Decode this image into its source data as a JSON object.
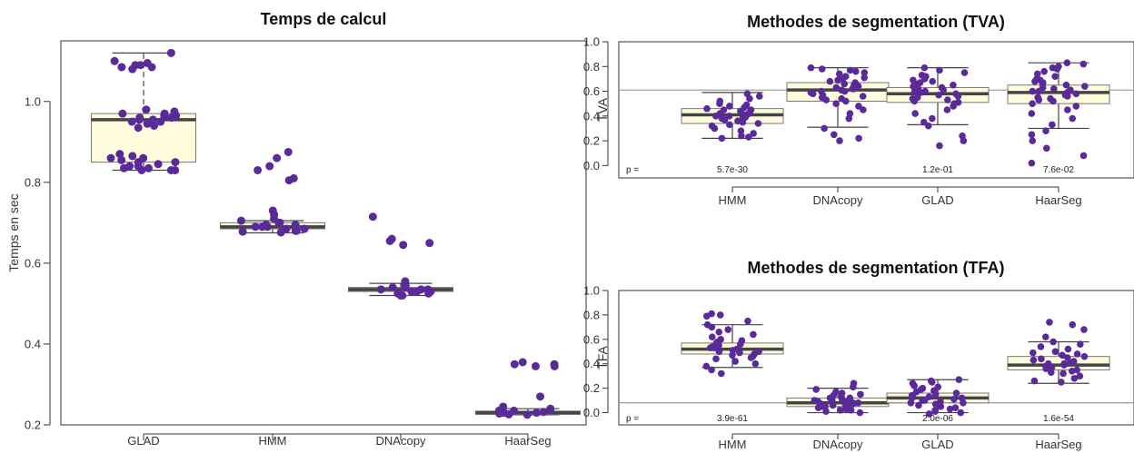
{
  "colors": {
    "point": "#5b2a9a",
    "box_fill": "#fefcdc",
    "box_edge": "#777777",
    "median": "#444444",
    "reference_line": "#999999",
    "axis": "#333333"
  },
  "chart_data": [
    {
      "type": "box",
      "title": "Temps de calcul",
      "xlabel": "",
      "ylabel": "Temps en sec",
      "ylim": [
        0.2,
        1.15
      ],
      "yticks": [
        0.2,
        0.4,
        0.6,
        0.8,
        1.0
      ],
      "ytick_labels": [
        "0.2",
        "0.4",
        "0.6",
        "0.8",
        "1.0"
      ],
      "categories": [
        "GLAD",
        "HMM",
        "DNAcopy",
        "HaarSeg"
      ],
      "boxes": [
        {
          "category": "GLAD",
          "whisker_low": 0.83,
          "q1": 0.85,
          "median": 0.955,
          "q3": 0.97,
          "whisker_high": 1.12,
          "dashed_whisker": true
        },
        {
          "category": "HMM",
          "whisker_low": 0.675,
          "q1": 0.685,
          "median": 0.69,
          "q3": 0.7,
          "whisker_high": 0.705
        },
        {
          "category": "DNAcopy",
          "whisker_low": 0.52,
          "q1": 0.53,
          "median": 0.535,
          "q3": 0.54,
          "whisker_high": 0.55
        },
        {
          "category": "HaarSeg",
          "whisker_low": 0.225,
          "q1": 0.226,
          "median": 0.23,
          "q3": 0.234,
          "whisker_high": 0.24
        }
      ],
      "points": [
        {
          "category": "GLAD",
          "values": [
            1.12,
            1.1,
            1.095,
            1.09,
            1.09,
            1.085,
            1.085,
            1.08,
            0.98,
            0.975,
            0.97,
            0.97,
            0.965,
            0.965,
            0.96,
            0.96,
            0.955,
            0.955,
            0.95,
            0.95,
            0.945,
            0.94,
            0.935,
            0.87,
            0.865,
            0.86,
            0.86,
            0.855,
            0.85,
            0.85,
            0.845,
            0.84,
            0.84,
            0.835,
            0.835,
            0.83,
            0.83,
            0.83
          ]
        },
        {
          "category": "HMM",
          "values": [
            0.875,
            0.86,
            0.84,
            0.83,
            0.81,
            0.805,
            0.73,
            0.72,
            0.71,
            0.705,
            0.7,
            0.7,
            0.695,
            0.695,
            0.69,
            0.69,
            0.69,
            0.685,
            0.685,
            0.68,
            0.68,
            0.678,
            0.676
          ]
        },
        {
          "category": "DNAcopy",
          "values": [
            0.715,
            0.66,
            0.655,
            0.65,
            0.645,
            0.555,
            0.55,
            0.545,
            0.54,
            0.54,
            0.535,
            0.535,
            0.535,
            0.53,
            0.53,
            0.53,
            0.525,
            0.525,
            0.52,
            0.52
          ]
        },
        {
          "category": "HaarSeg",
          "values": [
            0.355,
            0.35,
            0.35,
            0.345,
            0.345,
            0.27,
            0.245,
            0.24,
            0.235,
            0.235,
            0.232,
            0.23,
            0.23,
            0.228,
            0.226,
            0.225
          ]
        }
      ]
    },
    {
      "type": "box",
      "title": "Methodes de segmentation (TVA)",
      "xlabel": "",
      "ylabel": "TVA",
      "ylim": [
        -0.1,
        1.0
      ],
      "yticks": [
        0.0,
        0.2,
        0.4,
        0.6,
        0.8,
        1.0
      ],
      "ytick_labels": [
        "0.0",
        "0.2",
        "0.4",
        "0.6",
        "0.8",
        "1.0"
      ],
      "reference_line": 0.61,
      "categories": [
        "HMM",
        "DNAcopy",
        "GLAD",
        "HaarSeg"
      ],
      "pvalue_prefix": "p =",
      "pvalues": [
        "5.7e-30",
        "",
        "1.2e-01",
        "7.6e-02"
      ],
      "boxes": [
        {
          "category": "HMM",
          "whisker_low": 0.22,
          "q1": 0.34,
          "median": 0.41,
          "q3": 0.46,
          "whisker_high": 0.59
        },
        {
          "category": "DNAcopy",
          "whisker_low": 0.31,
          "q1": 0.52,
          "median": 0.61,
          "q3": 0.67,
          "whisker_high": 0.79
        },
        {
          "category": "GLAD",
          "whisker_low": 0.33,
          "q1": 0.51,
          "median": 0.58,
          "q3": 0.63,
          "whisker_high": 0.79
        },
        {
          "category": "HaarSeg",
          "whisker_low": 0.3,
          "q1": 0.5,
          "median": 0.59,
          "q3": 0.65,
          "whisker_high": 0.83
        }
      ],
      "points": [
        {
          "category": "HMM",
          "values": [
            0.58,
            0.56,
            0.54,
            0.52,
            0.5,
            0.49,
            0.48,
            0.47,
            0.46,
            0.45,
            0.45,
            0.44,
            0.43,
            0.42,
            0.42,
            0.41,
            0.41,
            0.4,
            0.4,
            0.39,
            0.38,
            0.38,
            0.37,
            0.36,
            0.35,
            0.34,
            0.33,
            0.32,
            0.3,
            0.28,
            0.26,
            0.24,
            0.23,
            0.22
          ]
        },
        {
          "category": "DNAcopy",
          "values": [
            0.79,
            0.78,
            0.77,
            0.76,
            0.75,
            0.74,
            0.72,
            0.71,
            0.7,
            0.69,
            0.68,
            0.67,
            0.66,
            0.65,
            0.64,
            0.63,
            0.62,
            0.62,
            0.61,
            0.6,
            0.6,
            0.59,
            0.58,
            0.57,
            0.56,
            0.55,
            0.54,
            0.53,
            0.52,
            0.5,
            0.48,
            0.45,
            0.42,
            0.38,
            0.3,
            0.25,
            0.22,
            0.2
          ]
        },
        {
          "category": "GLAD",
          "values": [
            0.79,
            0.77,
            0.75,
            0.73,
            0.72,
            0.7,
            0.69,
            0.68,
            0.67,
            0.66,
            0.65,
            0.64,
            0.63,
            0.62,
            0.61,
            0.6,
            0.6,
            0.59,
            0.58,
            0.57,
            0.56,
            0.55,
            0.54,
            0.53,
            0.52,
            0.51,
            0.5,
            0.48,
            0.45,
            0.42,
            0.38,
            0.35,
            0.32,
            0.24,
            0.2,
            0.16
          ]
        },
        {
          "category": "HaarSeg",
          "values": [
            0.83,
            0.82,
            0.8,
            0.79,
            0.78,
            0.76,
            0.74,
            0.72,
            0.7,
            0.69,
            0.68,
            0.67,
            0.66,
            0.65,
            0.64,
            0.63,
            0.62,
            0.61,
            0.6,
            0.6,
            0.59,
            0.58,
            0.57,
            0.56,
            0.55,
            0.54,
            0.53,
            0.52,
            0.5,
            0.48,
            0.45,
            0.42,
            0.38,
            0.33,
            0.28,
            0.25,
            0.2,
            0.14,
            0.08,
            0.02
          ]
        }
      ]
    },
    {
      "type": "box",
      "title": "Methodes de segmentation (TFA)",
      "xlabel": "",
      "ylabel": "TFA",
      "ylim": [
        -0.1,
        1.0
      ],
      "yticks": [
        0.0,
        0.2,
        0.4,
        0.6,
        0.8,
        1.0
      ],
      "ytick_labels": [
        "0.0",
        "0.2",
        "0.4",
        "0.6",
        "0.8",
        "1.0"
      ],
      "reference_line": 0.08,
      "categories": [
        "HMM",
        "DNAcopy",
        "GLAD",
        "HaarSeg"
      ],
      "pvalue_prefix": "p =",
      "pvalues": [
        "3.9e-61",
        "",
        "2.0e-06",
        "1.6e-54"
      ],
      "boxes": [
        {
          "category": "HMM",
          "whisker_low": 0.37,
          "q1": 0.48,
          "median": 0.52,
          "q3": 0.57,
          "whisker_high": 0.72
        },
        {
          "category": "DNAcopy",
          "whisker_low": 0.0,
          "q1": 0.05,
          "median": 0.08,
          "q3": 0.12,
          "whisker_high": 0.2
        },
        {
          "category": "GLAD",
          "whisker_low": 0.0,
          "q1": 0.08,
          "median": 0.12,
          "q3": 0.16,
          "whisker_high": 0.27
        },
        {
          "category": "HaarSeg",
          "whisker_low": 0.24,
          "q1": 0.35,
          "median": 0.39,
          "q3": 0.46,
          "whisker_high": 0.58
        }
      ],
      "points": [
        {
          "category": "HMM",
          "values": [
            0.81,
            0.8,
            0.79,
            0.75,
            0.72,
            0.7,
            0.68,
            0.66,
            0.64,
            0.62,
            0.6,
            0.59,
            0.58,
            0.57,
            0.56,
            0.55,
            0.54,
            0.53,
            0.53,
            0.52,
            0.51,
            0.5,
            0.5,
            0.49,
            0.48,
            0.47,
            0.46,
            0.45,
            0.44,
            0.42,
            0.4,
            0.38,
            0.35,
            0.32
          ]
        },
        {
          "category": "DNAcopy",
          "values": [
            0.24,
            0.21,
            0.19,
            0.17,
            0.16,
            0.15,
            0.14,
            0.13,
            0.12,
            0.12,
            0.11,
            0.1,
            0.1,
            0.09,
            0.09,
            0.08,
            0.08,
            0.07,
            0.07,
            0.06,
            0.06,
            0.05,
            0.05,
            0.04,
            0.04,
            0.03,
            0.02,
            0.02,
            0.01,
            0.0
          ]
        },
        {
          "category": "GLAD",
          "values": [
            0.27,
            0.26,
            0.25,
            0.24,
            0.22,
            0.21,
            0.2,
            0.19,
            0.18,
            0.17,
            0.16,
            0.15,
            0.14,
            0.14,
            0.13,
            0.12,
            0.12,
            0.11,
            0.1,
            0.1,
            0.09,
            0.08,
            0.08,
            0.07,
            0.06,
            0.05,
            0.04,
            0.03,
            0.02,
            0.01,
            0.0,
            -0.01
          ]
        },
        {
          "category": "HaarSeg",
          "values": [
            0.74,
            0.72,
            0.68,
            0.62,
            0.58,
            0.56,
            0.54,
            0.52,
            0.5,
            0.49,
            0.48,
            0.47,
            0.46,
            0.45,
            0.44,
            0.43,
            0.42,
            0.41,
            0.4,
            0.4,
            0.39,
            0.38,
            0.37,
            0.36,
            0.35,
            0.34,
            0.33,
            0.32,
            0.3,
            0.28,
            0.26,
            0.25
          ]
        }
      ]
    }
  ]
}
